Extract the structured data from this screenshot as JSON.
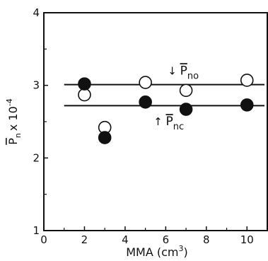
{
  "chart_data": {
    "type": "scatter",
    "title": "",
    "xlabel": "MMA (cm",
    "xlabel_sup": "3",
    "xlabel_end": ")",
    "ylabel": "P",
    "ylabel_sub": "n",
    "ylabel_rest": "x 10",
    "ylabel_sup": "-4",
    "xlim": [
      0,
      11
    ],
    "ylim": [
      1,
      4
    ],
    "xticks": [
      "0",
      "2",
      "4",
      "6",
      "8",
      "10"
    ],
    "yticks": [
      "1",
      "2",
      "3",
      "4"
    ],
    "series": [
      {
        "marker": "open-circle",
        "x": [
          2,
          3,
          5,
          7,
          10
        ],
        "y": [
          2.87,
          2.42,
          3.04,
          2.93,
          3.07
        ]
      },
      {
        "marker": "filled-circle",
        "x": [
          2,
          3,
          5,
          7,
          10
        ],
        "y": [
          3.02,
          2.28,
          2.77,
          2.67,
          2.73
        ]
      }
    ],
    "reference_lines": [
      {
        "y": 3.01,
        "x_range": [
          1,
          11
        ]
      },
      {
        "y": 2.72,
        "x_range": [
          1,
          11
        ]
      }
    ],
    "annotations": [
      {
        "arrow": "↓",
        "text": "P",
        "sub": "no",
        "x": 6.1,
        "y": 3.15
      },
      {
        "arrow": "↑",
        "text": "P",
        "sub": "nc",
        "x": 5.4,
        "y": 2.45
      }
    ]
  }
}
